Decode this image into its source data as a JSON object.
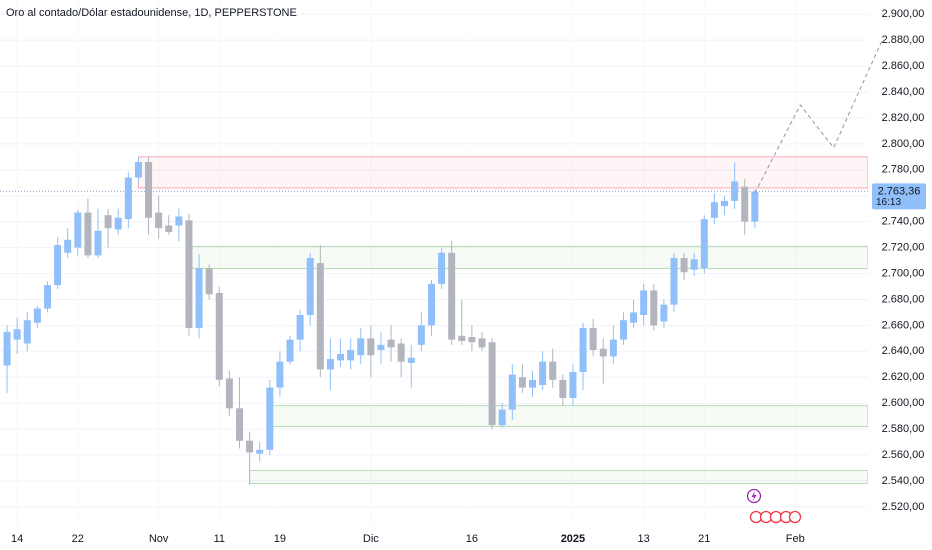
{
  "chart_data": {
    "type": "candlestick",
    "title": "Oro al contado/Dólar estadounidense, 1D, PEPPERSTONE",
    "up_color": "#90bff9",
    "down_color": "#b2b5be",
    "open": [
      2629,
      2649,
      2646,
      2662,
      2673,
      2691,
      2716,
      2720,
      2747,
      2714,
      2745,
      2734,
      2742,
      2774,
      2786,
      2747,
      2737,
      2737,
      2741,
      2658,
      2704,
      2685,
      2619,
      2596,
      2571,
      2561,
      2564,
      2612,
      2632,
      2649,
      2668,
      2708,
      2626,
      2633,
      2633,
      2637,
      2650,
      2641,
      2649,
      2646,
      2631,
      2645,
      2660,
      2692,
      2716,
      2652,
      2651,
      2650,
      2647,
      2583,
      2595,
      2620,
      2612,
      2614,
      2632,
      2618,
      2604,
      2624,
      2658,
      2642,
      2636,
      2649,
      2662,
      2668,
      2687,
      2663,
      2676,
      2712,
      2703,
      2704,
      2743,
      2752,
      2756,
      2767,
      2740
    ],
    "high": [
      2660,
      2666,
      2670,
      2675,
      2694,
      2728,
      2735,
      2749,
      2758,
      2750,
      2750,
      2750,
      2778,
      2790,
      2790,
      2760,
      2745,
      2750,
      2746,
      2715,
      2707,
      2690,
      2625,
      2620,
      2578,
      2570,
      2618,
      2640,
      2652,
      2672,
      2716,
      2722,
      2650,
      2650,
      2650,
      2658,
      2660,
      2655,
      2660,
      2650,
      2645,
      2670,
      2695,
      2720,
      2725,
      2680,
      2660,
      2655,
      2650,
      2600,
      2630,
      2630,
      2625,
      2640,
      2642,
      2622,
      2630,
      2662,
      2665,
      2650,
      2660,
      2670,
      2680,
      2692,
      2692,
      2680,
      2716,
      2716,
      2716,
      2745,
      2762,
      2760,
      2786,
      2773,
      2765
    ],
    "low": [
      2608,
      2638,
      2640,
      2658,
      2670,
      2688,
      2712,
      2714,
      2712,
      2712,
      2720,
      2730,
      2735,
      2770,
      2730,
      2727,
      2730,
      2725,
      2652,
      2650,
      2680,
      2613,
      2590,
      2565,
      2537,
      2555,
      2560,
      2605,
      2630,
      2640,
      2660,
      2620,
      2610,
      2628,
      2626,
      2630,
      2620,
      2630,
      2632,
      2620,
      2612,
      2640,
      2652,
      2688,
      2645,
      2645,
      2640,
      2640,
      2580,
      2581,
      2587,
      2608,
      2605,
      2610,
      2612,
      2598,
      2598,
      2610,
      2636,
      2615,
      2630,
      2645,
      2658,
      2660,
      2656,
      2658,
      2670,
      2695,
      2698,
      2700,
      2738,
      2745,
      2750,
      2730,
      2735
    ],
    "close": [
      2655,
      2657,
      2664,
      2673,
      2691,
      2722,
      2726,
      2747,
      2714,
      2733,
      2735,
      2743,
      2774,
      2786,
      2743,
      2735,
      2732,
      2744,
      2658,
      2704,
      2684,
      2618,
      2596,
      2571,
      2562,
      2564,
      2612,
      2632,
      2649,
      2668,
      2712,
      2626,
      2634,
      2638,
      2641,
      2650,
      2637,
      2645,
      2643,
      2632,
      2635,
      2660,
      2692,
      2716,
      2649,
      2648,
      2647,
      2643,
      2583,
      2595,
      2622,
      2612,
      2618,
      2632,
      2618,
      2604,
      2624,
      2658,
      2641,
      2636,
      2649,
      2664,
      2670,
      2687,
      2660,
      2676,
      2712,
      2701,
      2711,
      2742,
      2755,
      2756,
      2771,
      2740,
      2763
    ],
    "xlim": [
      -0.7,
      85.2
    ],
    "xticks": [
      {
        "value": 1,
        "label": "14"
      },
      {
        "value": 7,
        "label": "22"
      },
      {
        "value": 15,
        "label": "Nov"
      },
      {
        "value": 21,
        "label": "11"
      },
      {
        "value": 27,
        "label": "19"
      },
      {
        "value": 36,
        "label": "Dic"
      },
      {
        "value": 46,
        "label": "16"
      },
      {
        "value": 56,
        "label": "2025"
      },
      {
        "value": 63,
        "label": "13"
      },
      {
        "value": 69,
        "label": "21"
      },
      {
        "value": 78,
        "label": "Feb"
      }
    ],
    "ylim": [
      2506,
      2911
    ],
    "yticks": [
      {
        "value": 2520,
        "label": "2.520,00"
      },
      {
        "value": 2540,
        "label": "2.540,00"
      },
      {
        "value": 2560,
        "label": "2.560,00"
      },
      {
        "value": 2580,
        "label": "2.580,00"
      },
      {
        "value": 2600,
        "label": "2.600,00"
      },
      {
        "value": 2620,
        "label": "2.620,00"
      },
      {
        "value": 2640,
        "label": "2.640,00"
      },
      {
        "value": 2660,
        "label": "2.660,00"
      },
      {
        "value": 2680,
        "label": "2.680,00"
      },
      {
        "value": 2700,
        "label": "2.700,00"
      },
      {
        "value": 2720,
        "label": "2.720,00"
      },
      {
        "value": 2740,
        "label": "2.740,00"
      },
      {
        "value": 2760,
        "label": "2.760,00"
      },
      {
        "value": 2780,
        "label": "2.780,00"
      },
      {
        "value": 2800,
        "label": "2.800,00"
      },
      {
        "value": 2820,
        "label": "2.820,00"
      },
      {
        "value": 2840,
        "label": "2.840,00"
      },
      {
        "value": 2860,
        "label": "2.860,00"
      },
      {
        "value": 2880,
        "label": "2.880,00"
      },
      {
        "value": 2900,
        "label": "2.900,00"
      }
    ],
    "grid": true,
    "last_price": {
      "value": 2763.36,
      "label": "2.763,36",
      "countdown": "16:13",
      "color": "#90bff9"
    },
    "zones": [
      {
        "start": 13,
        "top": 2790,
        "bottom": 2766,
        "color": "#f23645"
      },
      {
        "start": 18,
        "top": 2721,
        "bottom": 2704,
        "color": "#4caf50"
      },
      {
        "start": 26,
        "top": 2598,
        "bottom": 2582,
        "color": "#4caf50"
      },
      {
        "start": 24,
        "top": 2548,
        "bottom": 2538,
        "color": "#4caf50"
      }
    ],
    "projection": {
      "x": [
        74,
        78.5,
        81.8,
        86.6
      ],
      "y": [
        2762,
        2830,
        2797,
        2880
      ],
      "color": "#9598a1"
    }
  }
}
